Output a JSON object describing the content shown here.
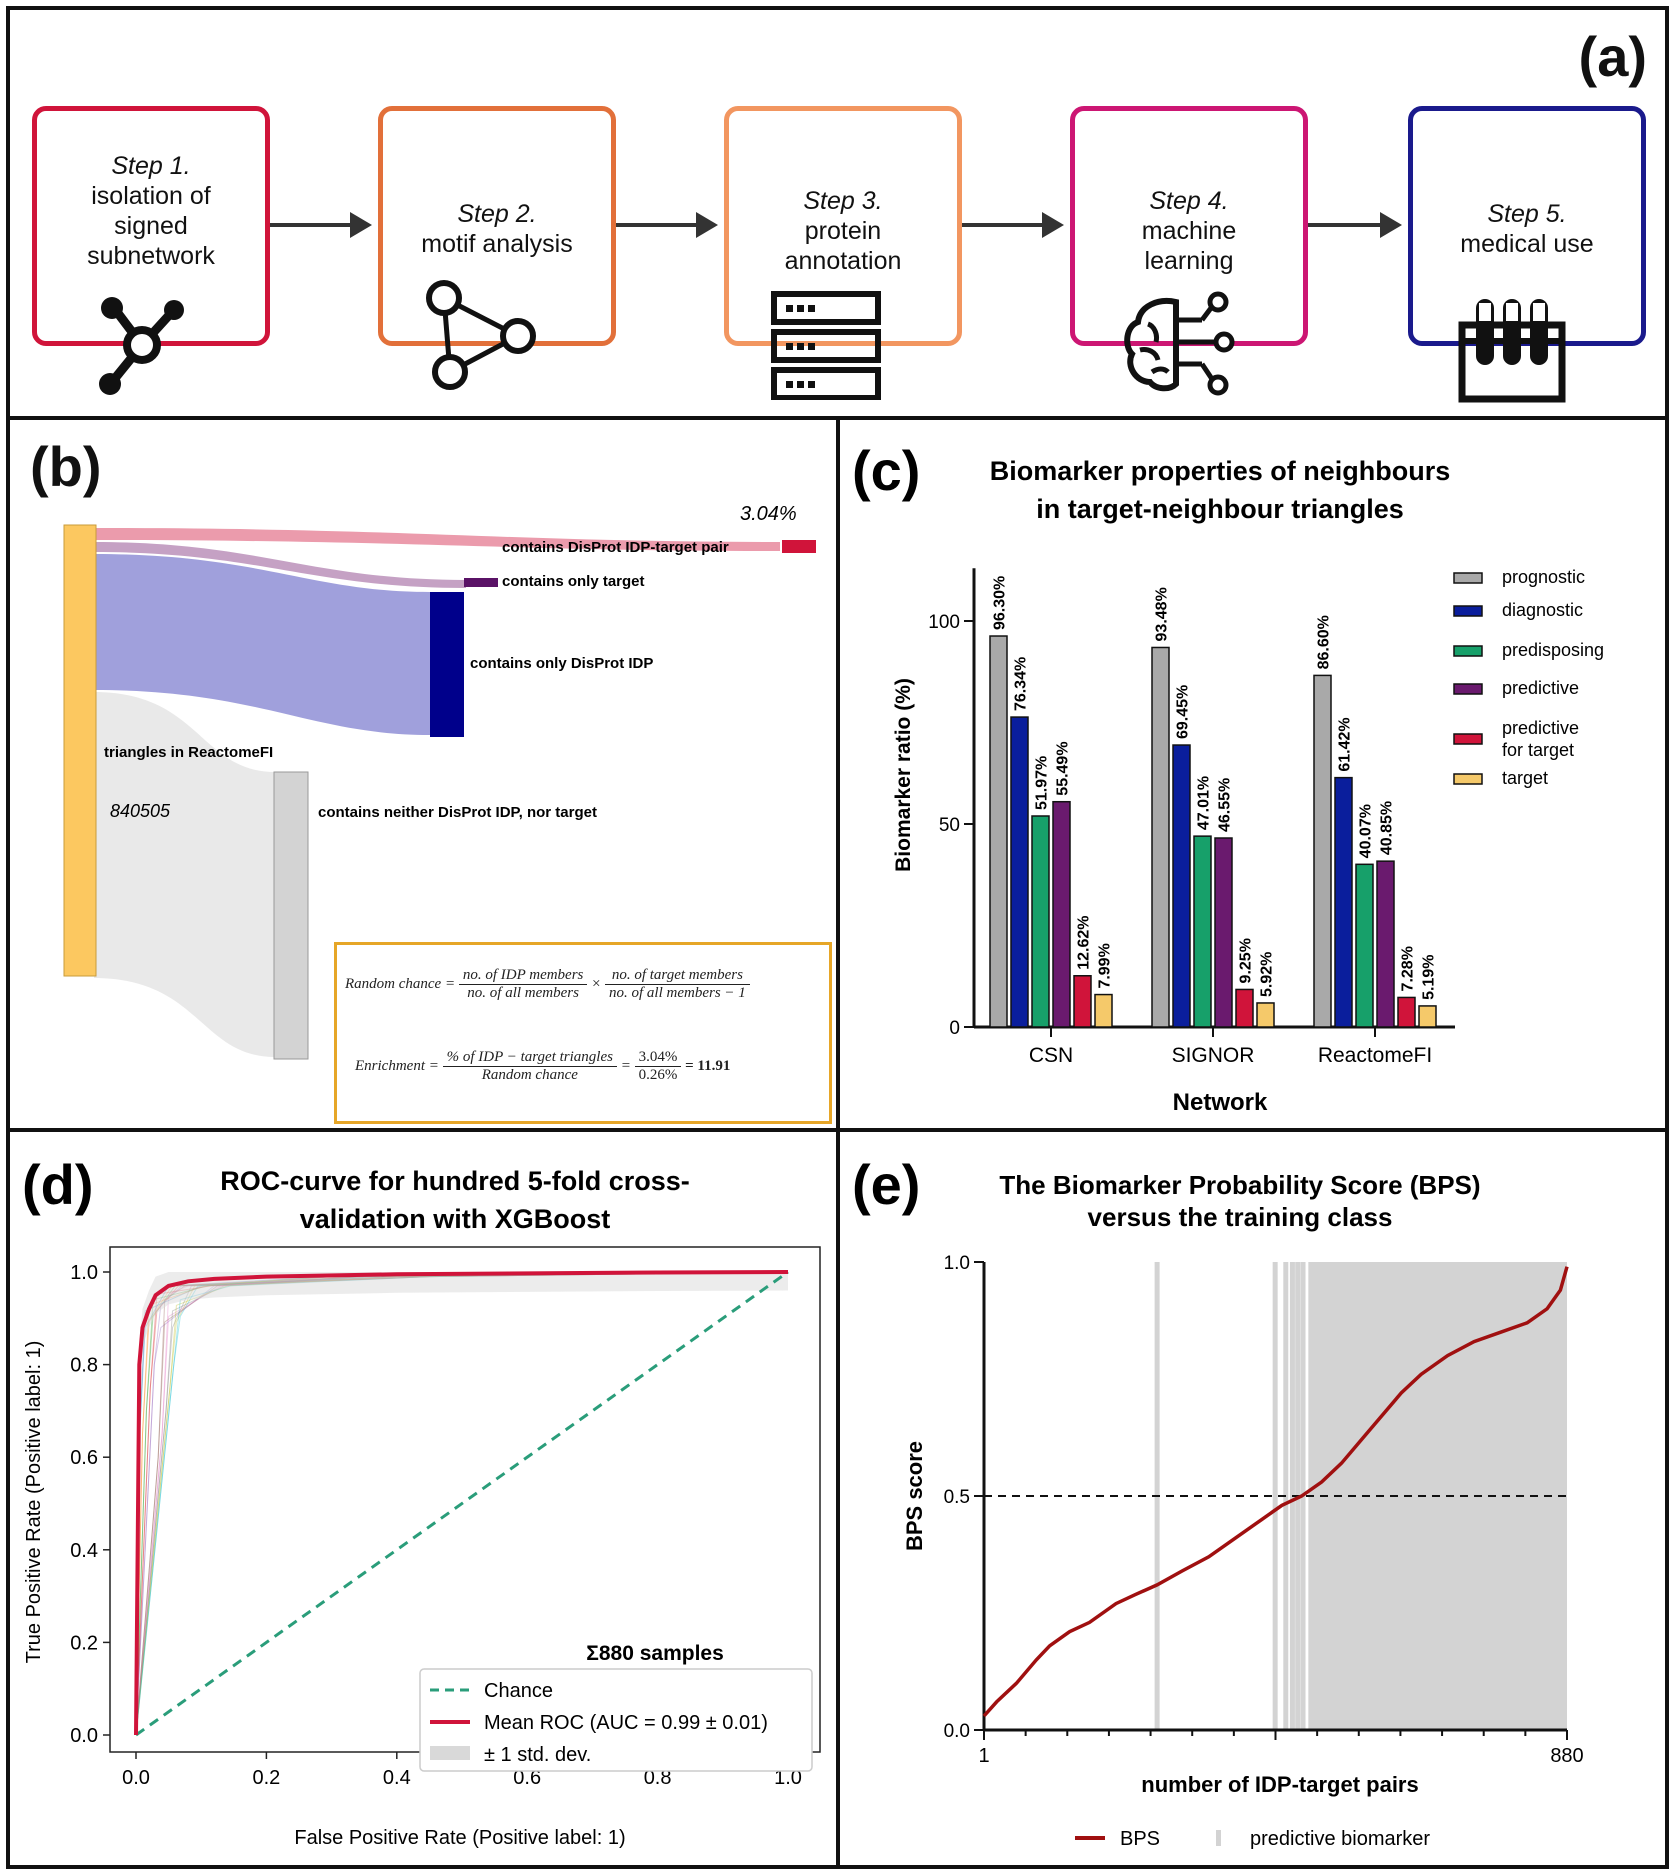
{
  "panel_a": {
    "label": "(a)",
    "steps": [
      {
        "title": "Step 1.",
        "text": "isolation of signed subnetwork",
        "color": "#d0143a",
        "icon": "network-hub-icon"
      },
      {
        "title": "Step 2.",
        "text": "motif analysis",
        "color": "#e2703a",
        "icon": "triangle-motif-icon"
      },
      {
        "title": "Step 3.",
        "text": "protein annotation",
        "color": "#f29660",
        "icon": "database-server-icon"
      },
      {
        "title": "Step 4.",
        "text": "machine learning",
        "color": "#cc1673",
        "icon": "brain-circuit-icon"
      },
      {
        "title": "Step 5.",
        "text": "medical use",
        "color": "#1a1a8c",
        "icon": "test-tubes-icon"
      }
    ]
  },
  "panel_b": {
    "label": "(b)",
    "pct_label": "3.04%",
    "source_label": "triangles in ReactomeFI",
    "count_label": "840505",
    "flows": [
      {
        "label": "contains DisProt IDP-target pair",
        "color": "#d0143a"
      },
      {
        "label": "contains only target",
        "color": "#5a1266"
      },
      {
        "label": "contains only DisProt IDP",
        "color": "#00008b"
      },
      {
        "label": "contains neither DisProt IDP, nor target",
        "color": "#d3d3d3"
      }
    ],
    "formula": {
      "random_chance_label": "Random chance =",
      "num1": "no. of IDP members",
      "den1": "no. of all members",
      "times": "×",
      "num2": "no. of target members",
      "den2": "no. of all members − 1",
      "enrichment_label": "Enrichment =",
      "num3": "% of IDP − target triangles",
      "den3": "Random chance",
      "eq": "=",
      "num4": "3.04%",
      "den4": "0.26%",
      "result": "= 11.91"
    }
  },
  "chart_data": [
    {
      "id": "c",
      "type": "bar",
      "title": "Biomarker properties of neighbours in target-neighbour triangles",
      "title_lines": [
        "Biomarker properties of neighbours",
        "in target-neighbour triangles"
      ],
      "panel_label": "(c)",
      "xlabel": "Network",
      "ylabel": "Biomarker ratio (%)",
      "ylim": [
        0,
        110
      ],
      "yticks": [
        0,
        50,
        100
      ],
      "categories": [
        "CSN",
        "SIGNOR",
        "ReactomeFI"
      ],
      "legend_position": "top-right",
      "series": [
        {
          "name": "prognostic",
          "color": "#a9a9a9",
          "values": [
            96.3,
            93.48,
            86.6
          ],
          "labels": [
            "96.30%",
            "93.48%",
            "86.60%"
          ]
        },
        {
          "name": "diagnostic",
          "color": "#0a1e9c",
          "values": [
            76.34,
            69.45,
            61.42
          ],
          "labels": [
            "76.34%",
            "69.45%",
            "61.42%"
          ]
        },
        {
          "name": "predisposing",
          "color": "#17a06a",
          "values": [
            51.97,
            47.01,
            40.07
          ],
          "labels": [
            "51.97%",
            "47.01%",
            "40.07%"
          ]
        },
        {
          "name": "predictive",
          "color": "#6a1a6e",
          "values": [
            55.49,
            46.55,
            40.85
          ],
          "labels": [
            "55.49%",
            "46.55%",
            "40.85%"
          ]
        },
        {
          "name": "predictive for target",
          "color": "#d0143a",
          "values": [
            12.62,
            9.25,
            7.28
          ],
          "labels": [
            "12.62%",
            "9.25%",
            "7.28%"
          ]
        },
        {
          "name": "target",
          "color": "#f5c96a",
          "values": [
            7.99,
            5.92,
            5.19
          ],
          "labels": [
            "7.99%",
            "5.92%",
            "5.19%"
          ]
        }
      ]
    },
    {
      "id": "d",
      "type": "line",
      "title": "ROC-curve for hundred 5-fold cross-validation with XGBoost",
      "title_lines": [
        "ROC-curve for hundred 5-fold cross-",
        "validation with XGBoost"
      ],
      "panel_label": "(d)",
      "xlabel": "False Positive Rate (Positive label: 1)",
      "ylabel": "True Positive Rate (Positive label: 1)",
      "xlim": [
        0,
        1
      ],
      "ylim": [
        0,
        1
      ],
      "xticks": [
        "0.0",
        "0.2",
        "0.4",
        "0.6",
        "0.8",
        "1.0"
      ],
      "yticks": [
        "0.0",
        "0.2",
        "0.4",
        "0.6",
        "0.8",
        "1.0"
      ],
      "annotation": "Σ880 samples",
      "legend_position": "bottom-right",
      "series": [
        {
          "name": "Chance",
          "style": "dashed",
          "color": "#2a9d7a",
          "x": [
            0,
            1
          ],
          "y": [
            0,
            1
          ]
        },
        {
          "name": "Mean ROC (AUC = 0.99 ± 0.01)",
          "style": "solid",
          "color": "#d0143a",
          "x": [
            0,
            0.005,
            0.01,
            0.02,
            0.03,
            0.05,
            0.08,
            0.12,
            0.2,
            0.4,
            0.6,
            0.8,
            1.0
          ],
          "y": [
            0,
            0.8,
            0.88,
            0.92,
            0.95,
            0.97,
            0.98,
            0.985,
            0.99,
            0.995,
            0.997,
            0.999,
            1.0
          ]
        },
        {
          "name": "± 1 std. dev.",
          "style": "band",
          "color": "#d9d9d9"
        }
      ]
    },
    {
      "id": "e",
      "type": "line",
      "title": "The Biomarker Probability Score (BPS) versus the training class",
      "title_lines": [
        "The Biomarker Probability Score (BPS)",
        "versus the training class"
      ],
      "panel_label": "(e)",
      "xlabel": "number of IDP-target pairs",
      "ylabel": "BPS score",
      "xlim": [
        1,
        880
      ],
      "ylim": [
        0,
        1
      ],
      "xtick_labels": [
        "1",
        "880"
      ],
      "yticks": [
        "0.0",
        "0.5",
        "1.0"
      ],
      "threshold": 0.5,
      "legend_position": "bottom",
      "legend": [
        "BPS",
        "predictive biomarker"
      ],
      "bps_color": "#a01010",
      "biomarker_color": "#d3d3d3",
      "biomarker_lines": [
        262,
        440,
        456,
        466,
        474,
        482
      ],
      "biomarker_region_start": 490,
      "bps": {
        "x": [
          1,
          20,
          50,
          80,
          100,
          130,
          160,
          200,
          230,
          262,
          300,
          340,
          380,
          420,
          450,
          480,
          510,
          540,
          570,
          600,
          630,
          660,
          700,
          740,
          780,
          820,
          850,
          870,
          880
        ],
        "y": [
          0.03,
          0.06,
          0.1,
          0.15,
          0.18,
          0.21,
          0.23,
          0.27,
          0.29,
          0.31,
          0.34,
          0.37,
          0.41,
          0.45,
          0.48,
          0.5,
          0.53,
          0.57,
          0.62,
          0.67,
          0.72,
          0.76,
          0.8,
          0.83,
          0.85,
          0.87,
          0.9,
          0.94,
          0.99
        ]
      }
    }
  ]
}
